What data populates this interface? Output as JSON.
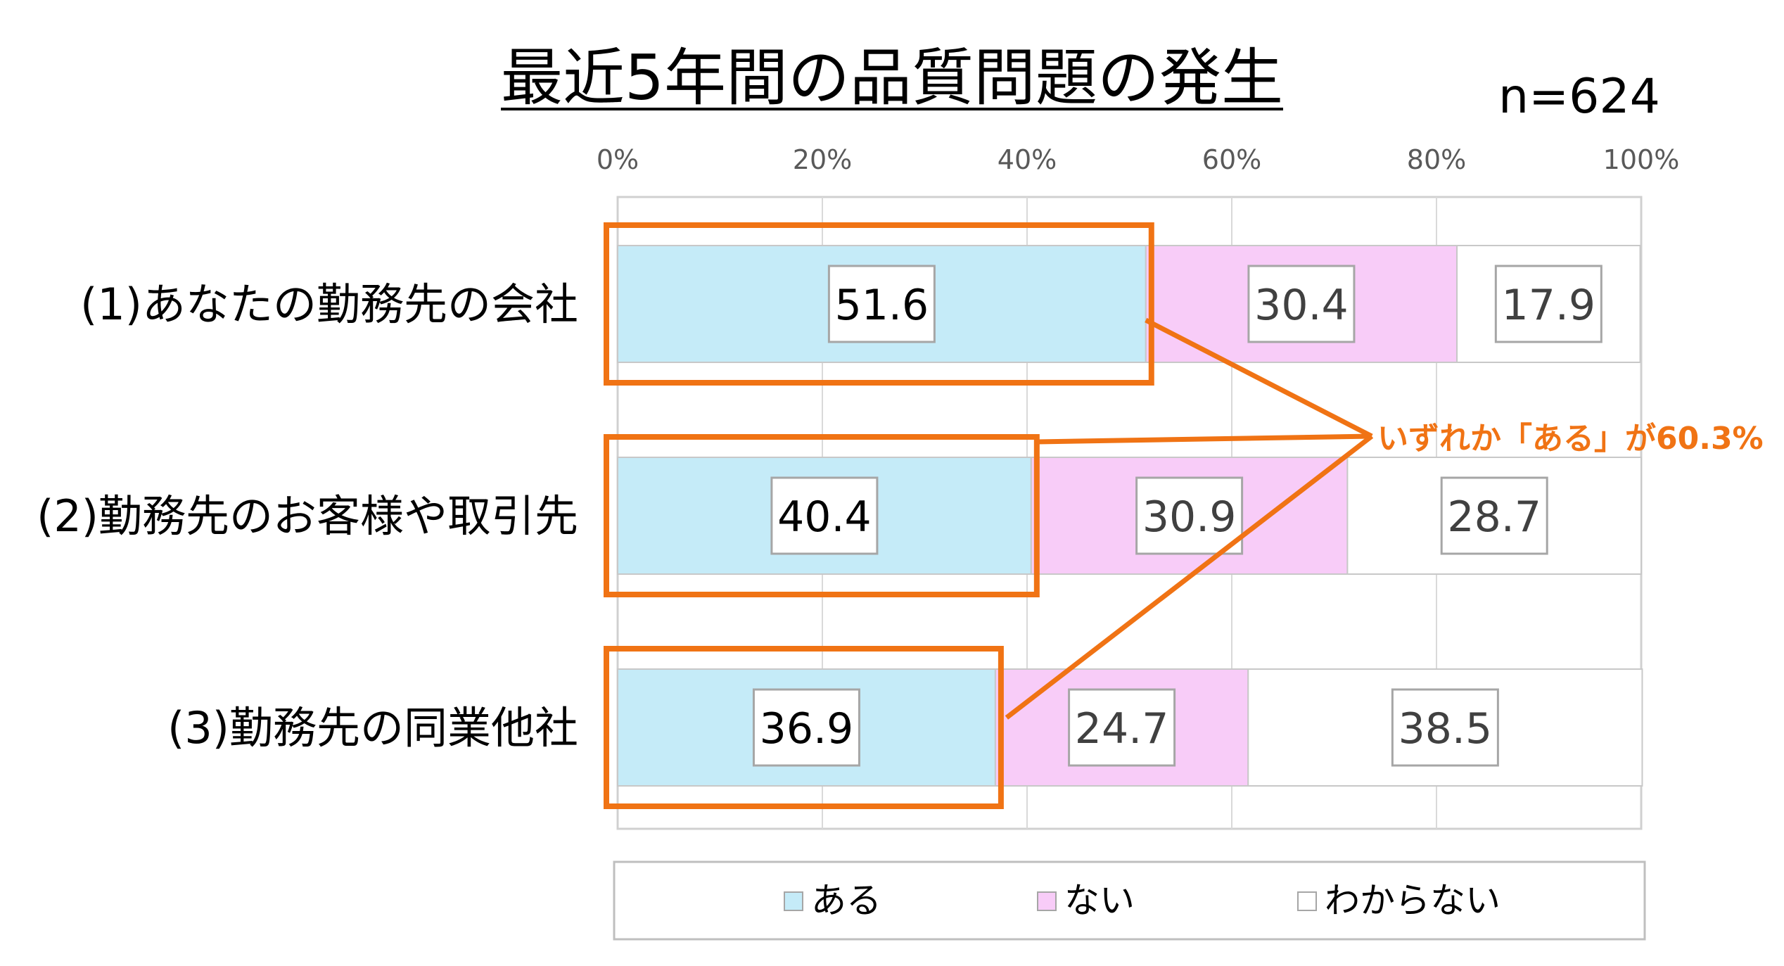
{
  "title": "最近5年間の品質問題の発生",
  "note": "n=624",
  "annotation": "いずれか「ある」が60.3%",
  "chart_data": {
    "type": "bar",
    "orientation": "horizontal",
    "stacked": "percent",
    "categories": [
      "(1)あなたの勤務先の会社",
      "(2)勤務先のお客様や取引先",
      "(3)勤務先の同業他社"
    ],
    "series": [
      {
        "name": "ある",
        "values": [
          51.6,
          40.4,
          36.9
        ],
        "color": "#c5ebf8"
      },
      {
        "name": "ない",
        "values": [
          30.4,
          30.9,
          24.7
        ],
        "color": "#f8ccf8"
      },
      {
        "name": "わからない",
        "values": [
          17.9,
          28.7,
          38.5
        ],
        "color": "#ffffff"
      }
    ],
    "x_ticks": [
      "0%",
      "20%",
      "40%",
      "60%",
      "80%",
      "100%"
    ],
    "xlim": [
      0,
      100
    ],
    "grid": true,
    "legend_position": "bottom",
    "highlight_color": "#f07314"
  }
}
